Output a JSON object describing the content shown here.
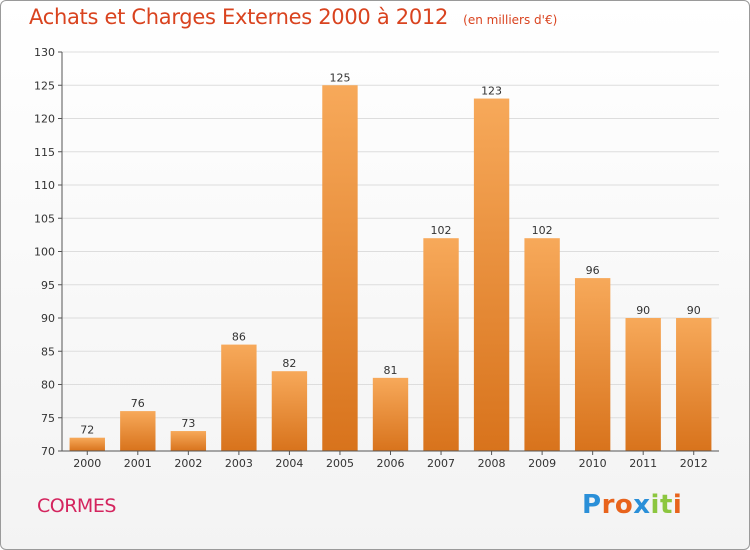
{
  "header": {
    "title": "Achats et Charges Externes 2000 à 2012",
    "subtitle": "(en milliers d'€)"
  },
  "footer": {
    "place": "CORMES",
    "logo": "Proxiti"
  },
  "colors": {
    "title": "#d9431f",
    "place": "#d4245e",
    "bar_top": "#f7a95a",
    "bar_bottom": "#d8731c",
    "grid": "#dddddd",
    "logo_letters": [
      "#2a8fd8",
      "#e8631c",
      "#e8631c",
      "#2a8fd8",
      "#8cc63f",
      "#8cc63f",
      "#e8631c"
    ]
  },
  "chart_data": {
    "type": "bar",
    "title": "Achats et Charges Externes 2000 à 2012",
    "subtitle": "(en milliers d'€)",
    "categories": [
      "2000",
      "2001",
      "2002",
      "2003",
      "2004",
      "2005",
      "2006",
      "2007",
      "2008",
      "2009",
      "2010",
      "2011",
      "2012"
    ],
    "values": [
      72,
      76,
      73,
      86,
      82,
      125,
      81,
      102,
      123,
      102,
      96,
      90,
      90
    ],
    "xlabel": "",
    "ylabel": "",
    "ylim": [
      70,
      130
    ],
    "yticks": [
      70,
      75,
      80,
      85,
      90,
      95,
      100,
      105,
      110,
      115,
      120,
      125,
      130
    ],
    "grid": true,
    "legend": "none"
  }
}
